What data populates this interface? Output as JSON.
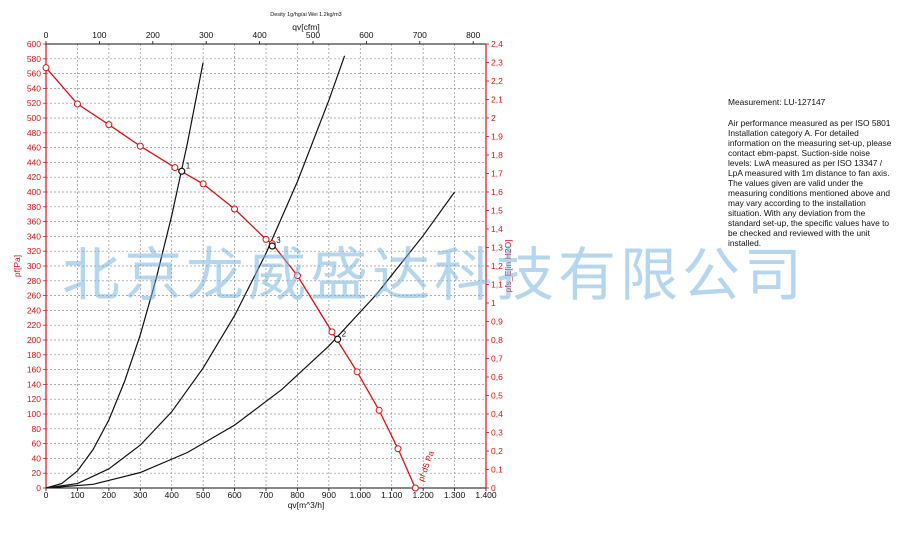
{
  "chart_data": {
    "type": "line",
    "caption": "Desity 1g/hg/ai Wei 1.2kg/m3",
    "x_axis_bottom": {
      "label": "qv[m^3/h]",
      "range": [
        0,
        1400
      ],
      "ticks": [
        0,
        100,
        200,
        300,
        400,
        500,
        600,
        700,
        800,
        900,
        1000,
        1100,
        1200,
        1300,
        1400
      ],
      "tick_labels": [
        "0",
        "100",
        "200",
        "300",
        "400",
        "500",
        "600",
        "700",
        "800",
        "900",
        "1.000",
        "1.100",
        "1.200",
        "1.300",
        "1.400"
      ]
    },
    "x_axis_top": {
      "label": "qv[cfm]",
      "range": [
        0,
        824
      ],
      "ticks": [
        0,
        100,
        200,
        300,
        400,
        500,
        600,
        700,
        800
      ],
      "tick_labels": [
        "0",
        "100",
        "200",
        "300",
        "400",
        "500",
        "600",
        "700",
        "800"
      ]
    },
    "y_axis_left": {
      "label": "pf[Pa]",
      "range": [
        0,
        600
      ],
      "ticks": [
        0,
        20,
        40,
        60,
        80,
        100,
        120,
        140,
        160,
        180,
        200,
        220,
        240,
        260,
        280,
        300,
        320,
        340,
        360,
        380,
        400,
        420,
        440,
        460,
        480,
        500,
        520,
        540,
        560,
        580,
        600
      ],
      "tick_labels": [
        "0",
        "20",
        "40",
        "60",
        "80",
        "100",
        "120",
        "140",
        "160",
        "180",
        "200",
        "220",
        "240",
        "260",
        "280",
        "300",
        "320",
        "340",
        "360",
        "380",
        "400",
        "420",
        "440",
        "460",
        "480",
        "500",
        "520",
        "540",
        "560",
        "580",
        "600"
      ]
    },
    "y_axis_right": {
      "label": "pfs_E[in H2O]",
      "range": [
        0,
        2.4
      ],
      "ticks": [
        0,
        0.1,
        0.2,
        0.3,
        0.4,
        0.5,
        0.6,
        0.7,
        0.8,
        0.9,
        1.0,
        1.1,
        1.2,
        1.3,
        1.4,
        1.5,
        1.6,
        1.7,
        1.8,
        1.9,
        2.0,
        2.1,
        2.2,
        2.3,
        2.4
      ],
      "tick_labels": [
        "0",
        "0,1",
        "0,2",
        "0,3",
        "0,4",
        "0,5",
        "0,6",
        "0,7",
        "0,8",
        "0,9",
        "1",
        "1,1",
        "1,2",
        "1,3",
        "1,4",
        "1,5",
        "1,6",
        "1,7",
        "1,8",
        "1,9",
        "2",
        "2,1",
        "2,2",
        "2,3",
        "2,4"
      ]
    },
    "grid": true,
    "series": [
      {
        "name": "",
        "color": "#e01010",
        "marker": "circle",
        "x": [
          0,
          100,
          200,
          300,
          410,
          500,
          600,
          700,
          720,
          800,
          910,
          990,
          1060,
          1120,
          1175
        ],
        "y": [
          568,
          519,
          491,
          462,
          433,
          411,
          377,
          336,
          330,
          287,
          211,
          157,
          105,
          53,
          0
        ],
        "curve_label": "pf d5 Pa"
      }
    ],
    "system_curves": [
      {
        "name": "system-curve-1",
        "color": "#111111",
        "x": [
          0,
          50,
          100,
          150,
          200,
          250,
          300,
          350,
          400,
          450,
          500
        ],
        "y": [
          0,
          6,
          23,
          52,
          92,
          144,
          207,
          282,
          368,
          466,
          575
        ]
      },
      {
        "name": "system-curve-2",
        "color": "#111111",
        "x": [
          0,
          100,
          200,
          300,
          400,
          500,
          600,
          700,
          800,
          900,
          950
        ],
        "y": [
          0,
          6,
          26,
          58,
          103,
          162,
          233,
          317,
          414,
          524,
          584
        ]
      },
      {
        "name": "system-curve-3",
        "color": "#111111",
        "x": [
          0,
          150,
          300,
          450,
          600,
          750,
          900,
          1050,
          1200,
          1300
        ],
        "y": [
          0,
          5,
          21,
          48,
          85,
          133,
          192,
          261,
          341,
          400
        ]
      }
    ],
    "operating_points": [
      {
        "label": "1",
        "x": 432,
        "y": 428
      },
      {
        "label": "2",
        "x": 928,
        "y": 201
      },
      {
        "label": "3",
        "x": 720,
        "y": 327
      }
    ]
  },
  "watermark": "北京龙威盛达科技有限公司",
  "notes": {
    "title": "Measurement: LU-127147",
    "body": "Air performance measured as per ISO 5801 Installation category A. For detailed information on the measuring set-up, please contact ebm-papst. Suction-side noise levels: LwA measured as per ISO 13347 / LpA measured with 1m distance to fan axis. The values given are valid under the measuring conditions mentioned above and may vary according to the installation situation. With any deviation from the standard set-up, the specific values have to be checked and reviewed with the unit installed."
  }
}
